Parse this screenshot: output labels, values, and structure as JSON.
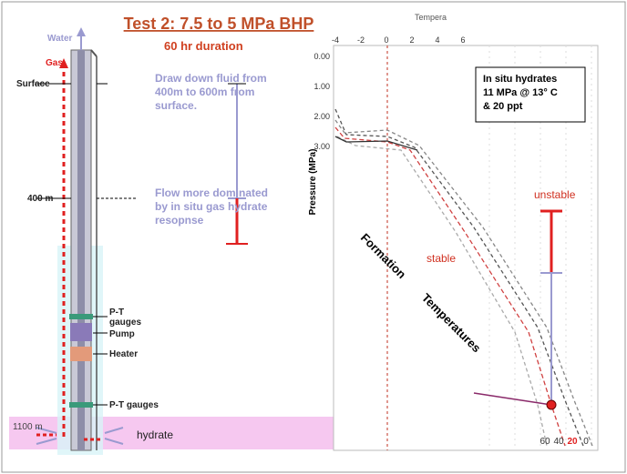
{
  "title": "Test 2: 7.5 to 5 MPa BHP",
  "duration": "60 hr duration",
  "well": {
    "water": "Water",
    "gas": "Gas",
    "surface": "Surface",
    "depth_400": "400 m",
    "depth_1100": "1100 m",
    "hydrate": "hydrate",
    "pt_gauges_upper": [
      "P-T",
      "gauges"
    ],
    "pump": "Pump",
    "heater": "Heater",
    "pt_gauges_lower": "P-T gauges"
  },
  "notes": {
    "draw_down": [
      "Draw down fluid from",
      "400m to 600m from",
      "surface."
    ],
    "flow": [
      "Flow more dominated",
      "by in situ gas hydrate",
      "resopnse"
    ]
  },
  "chart": {
    "x_label": "Tempera",
    "x_ticks": [
      "-4",
      "-2",
      "0",
      "2",
      "4",
      "6"
    ],
    "y_label": "Pressure (MPa)",
    "y_ticks": [
      "0.00",
      "1.00",
      "2.00",
      "3.00"
    ],
    "box": [
      "In situ hydrates",
      "11 MPa @ 13° C",
      "& 20 ppt"
    ],
    "unstable": "unstable",
    "stable": "stable",
    "formation": "Formation",
    "temperatures": "Temperatures",
    "bottom_ticks": [
      "60",
      "40",
      "20",
      "0"
    ]
  }
}
